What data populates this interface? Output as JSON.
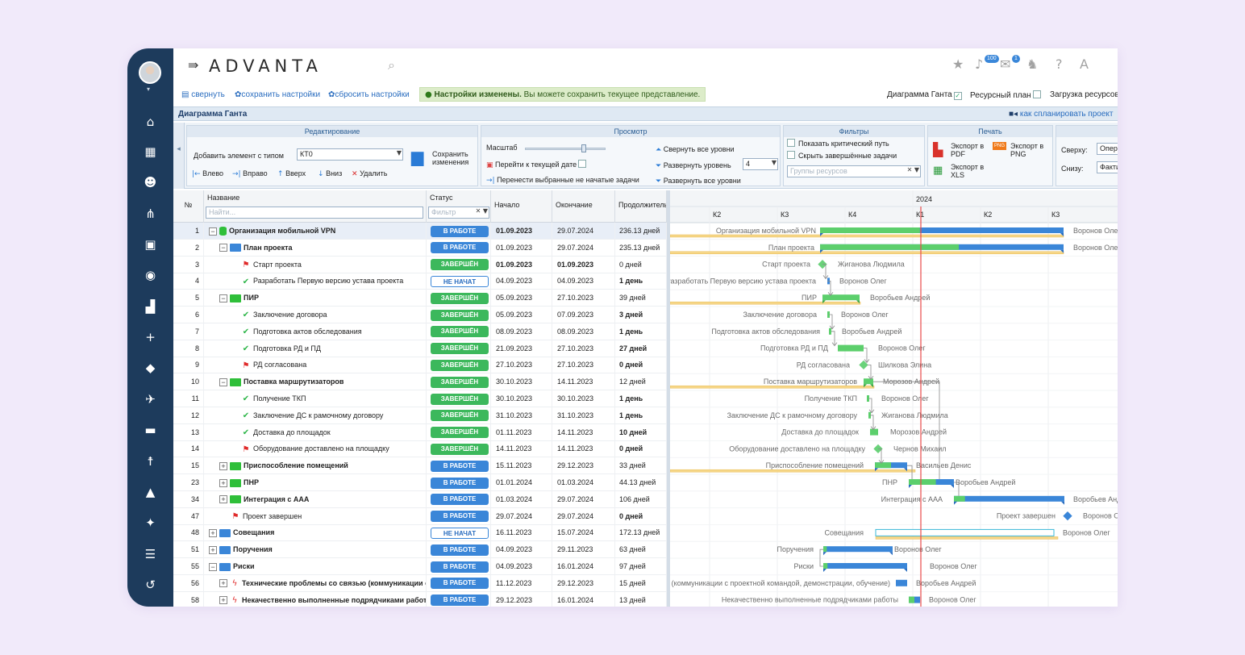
{
  "app": {
    "logo": "ADVANTA"
  },
  "header": {
    "notif_count": "100",
    "mail_count": "1"
  },
  "toolbar": {
    "collapse": "свернуть",
    "save_settings": "сохранить настройки",
    "reset_settings": "сбросить настройки",
    "notice_bold": "Настройки изменены.",
    "notice_rest": " Вы можете сохранить текущее представление.",
    "view_gantt": "Диаграмма Ганта",
    "view_resource": "Ресурсный план",
    "view_load": "Загрузка ресурсов"
  },
  "panel": {
    "title": "Диаграмма Ганта",
    "help": "как спланировать проект"
  },
  "ribbon": {
    "edit": {
      "head": "Редактирование",
      "add_label": "Добавить элемент с типом",
      "type_value": "КТ0",
      "save_label": "Сохранить изменения",
      "left": "Влево",
      "right": "Вправо",
      "up": "Вверх",
      "down": "Вниз",
      "delete": "Удалить"
    },
    "view": {
      "head": "Просмотр",
      "scale": "Масштаб",
      "goto_today": "Перейти к текущей дате",
      "move_selected": "Перенести выбранные не начатые задачи",
      "collapse_all": "Свернуть все уровни",
      "expand_level": "Развернуть уровень",
      "level_value": "4",
      "expand_all": "Развернуть все уровни"
    },
    "filters": {
      "head": "Фильтры",
      "critical": "Показать критический путь",
      "hide_done": "Скрыть завершённые задачи",
      "groups_placeholder": "Группы ресурсов"
    },
    "print": {
      "head": "Печать",
      "pdf": "Экспорт в PDF",
      "png": "Экспорт в PNG",
      "xls": "Экспорт в XLS",
      "png_badge": "PNG"
    },
    "extra": {
      "top_label": "Сверху:",
      "top_value": "Оперативный",
      "bottom_label": "Снизу:",
      "bottom_value": "Фактический"
    }
  },
  "grid": {
    "headers": {
      "no": "№",
      "name": "Название",
      "status": "Статус",
      "start": "Начало",
      "end": "Окончание",
      "duration": "Продолжительность"
    },
    "name_filter_placeholder": "Найти...",
    "status_filter_placeholder": "Фильтр",
    "rows": [
      {
        "no": "1",
        "name": "Организация мобильной VPN",
        "status": "В РАБОТЕ",
        "start": "01.09.2023",
        "end": "29.07.2024",
        "dur": "236.13 дней"
      },
      {
        "no": "2",
        "name": "План проекта",
        "status": "В РАБОТЕ",
        "start": "01.09.2023",
        "end": "29.07.2024",
        "dur": "235.13 дней"
      },
      {
        "no": "3",
        "name": "Старт проекта",
        "status": "ЗАВЕРШЁН",
        "start": "01.09.2023",
        "end": "01.09.2023",
        "dur": "0 дней"
      },
      {
        "no": "4",
        "name": "Разработать Первую версию устава проекта",
        "status": "НЕ НАЧАТ",
        "start": "04.09.2023",
        "end": "04.09.2023",
        "dur": "1 день"
      },
      {
        "no": "5",
        "name": "ПИР",
        "status": "ЗАВЕРШЁН",
        "start": "05.09.2023",
        "end": "27.10.2023",
        "dur": "39 дней"
      },
      {
        "no": "6",
        "name": "Заключение договора",
        "status": "ЗАВЕРШЁН",
        "start": "05.09.2023",
        "end": "07.09.2023",
        "dur": "3 дней"
      },
      {
        "no": "7",
        "name": "Подготовка актов обследования",
        "status": "ЗАВЕРШЁН",
        "start": "08.09.2023",
        "end": "08.09.2023",
        "dur": "1 день"
      },
      {
        "no": "8",
        "name": "Подготовка РД и ПД",
        "status": "ЗАВЕРШЁН",
        "start": "21.09.2023",
        "end": "27.10.2023",
        "dur": "27 дней"
      },
      {
        "no": "9",
        "name": "РД согласована",
        "status": "ЗАВЕРШЁН",
        "start": "27.10.2023",
        "end": "27.10.2023",
        "dur": "0 дней"
      },
      {
        "no": "10",
        "name": "Поставка маршрутизаторов",
        "status": "ЗАВЕРШЁН",
        "start": "30.10.2023",
        "end": "14.11.2023",
        "dur": "12 дней"
      },
      {
        "no": "11",
        "name": "Получение ТКП",
        "status": "ЗАВЕРШЁН",
        "start": "30.10.2023",
        "end": "30.10.2023",
        "dur": "1 день"
      },
      {
        "no": "12",
        "name": "Заключение ДС к рамочному договору",
        "status": "ЗАВЕРШЁН",
        "start": "31.10.2023",
        "end": "31.10.2023",
        "dur": "1 день"
      },
      {
        "no": "13",
        "name": "Доставка до площадок",
        "status": "ЗАВЕРШЁН",
        "start": "01.11.2023",
        "end": "14.11.2023",
        "dur": "10 дней"
      },
      {
        "no": "14",
        "name": "Оборудование доставлено на площадку",
        "status": "ЗАВЕРШЁН",
        "start": "14.11.2023",
        "end": "14.11.2023",
        "dur": "0 дней"
      },
      {
        "no": "15",
        "name": "Приспособление помещений",
        "status": "В РАБОТЕ",
        "start": "15.11.2023",
        "end": "29.12.2023",
        "dur": "33 дней"
      },
      {
        "no": "23",
        "name": "ПНР",
        "status": "В РАБОТЕ",
        "start": "01.01.2024",
        "end": "01.03.2024",
        "dur": "44.13 дней"
      },
      {
        "no": "34",
        "name": "Интеграция с ААА",
        "status": "В РАБОТЕ",
        "start": "01.03.2024",
        "end": "29.07.2024",
        "dur": "106 дней"
      },
      {
        "no": "47",
        "name": "Проект завершен",
        "status": "В РАБОТЕ",
        "start": "29.07.2024",
        "end": "29.07.2024",
        "dur": "0 дней"
      },
      {
        "no": "48",
        "name": "Совещания",
        "status": "НЕ НАЧАТ",
        "start": "16.11.2023",
        "end": "15.07.2024",
        "dur": "172.13 дней"
      },
      {
        "no": "51",
        "name": "Поручения",
        "status": "В РАБОТЕ",
        "start": "04.09.2023",
        "end": "29.11.2023",
        "dur": "63 дней"
      },
      {
        "no": "55",
        "name": "Риски",
        "status": "В РАБОТЕ",
        "start": "04.09.2023",
        "end": "16.01.2024",
        "dur": "97 дней"
      },
      {
        "no": "56",
        "name": "Технические проблемы со связью (коммуникации с проектной командой, демонстрации, обучение)",
        "status": "В РАБОТЕ",
        "start": "11.12.2023",
        "end": "29.12.2023",
        "dur": "15 дней"
      },
      {
        "no": "58",
        "name": "Некачественно выполненные подрядчиками работы",
        "status": "В РАБОТЕ",
        "start": "29.12.2023",
        "end": "16.01.2024",
        "dur": "13 дней"
      }
    ]
  },
  "gantt": {
    "year_label": "2024",
    "quarters": [
      "К2",
      "К3",
      "К4",
      "К1",
      "К2",
      "К3"
    ],
    "bars": [
      {
        "label": "Организация мобильной VPN",
        "assignee": "Воронов Олег"
      },
      {
        "label": "План проекта",
        "assignee": "Воронов Олег"
      },
      {
        "label": "Старт проекта",
        "assignee": "Жиганова Людмила"
      },
      {
        "label": "Разработать Первую версию устава проекта",
        "assignee": "Воронов Олег"
      },
      {
        "label": "ПИР",
        "assignee": "Воробьев Андрей"
      },
      {
        "label": "Заключение договора",
        "assignee": "Воронов Олег"
      },
      {
        "label": "Подготовка актов обследования",
        "assignee": "Воробьев Андрей"
      },
      {
        "label": "Подготовка РД и ПД",
        "assignee": "Воронов Олег"
      },
      {
        "label": "РД согласована",
        "assignee": "Шилкова Элина"
      },
      {
        "label": "Поставка маршрутизаторов",
        "assignee": "Морозов Андрей"
      },
      {
        "label": "Получение ТКП",
        "assignee": "Воронов Олег"
      },
      {
        "label": "Заключение ДС к рамочному договору",
        "assignee": "Жиганова Людмила"
      },
      {
        "label": "Доставка до площадок",
        "assignee": "Морозов Андрей"
      },
      {
        "label": "Оборудование доставлено на площадку",
        "assignee": "Чернов Михаил"
      },
      {
        "label": "Приспособление помещений",
        "assignee": "Васильев Денис"
      },
      {
        "label": "ПНР",
        "assignee": "Воробьев Андрей"
      },
      {
        "label": "Интеграция с ААА",
        "assignee": "Воробьев Андрей"
      },
      {
        "label": "Проект завершен",
        "assignee": "Воронов Олег"
      },
      {
        "label": "Совещания",
        "assignee": "Воронов Олег"
      },
      {
        "label": "Поручения",
        "assignee": "Воронов Олег"
      },
      {
        "label": "Риски",
        "assignee": "Воронов Олег"
      },
      {
        "label": "Технические проблемы со связью (коммуникации с проектной командой, демонстрации, обучение)",
        "assignee": "Воробьев Андрей"
      },
      {
        "label": "Некачественно выполненные подрядчиками работы",
        "assignee": "Воронов Олег"
      }
    ]
  },
  "colors": {
    "sidebar": "#1d3b5c",
    "accent": "#3a86d8",
    "done": "#3cb85c",
    "today_line": "#e84a4a",
    "baseline": "#f3c45d"
  }
}
